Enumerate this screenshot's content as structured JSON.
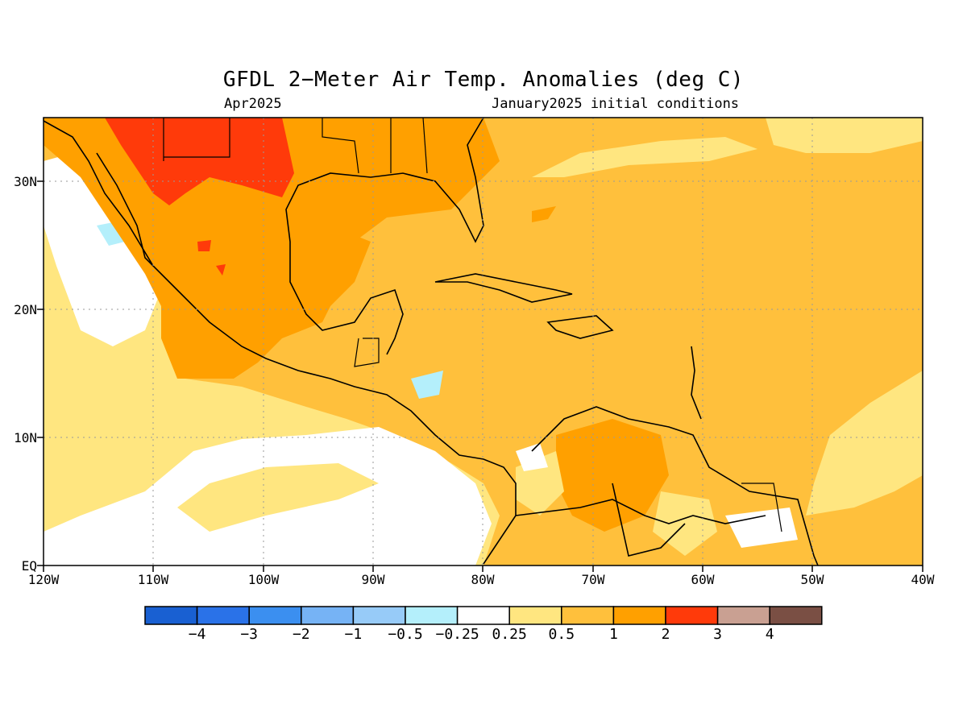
{
  "title": "GFDL 2−Meter Air Temp. Anomalies (deg C)",
  "subtitle_left": "Apr2025",
  "subtitle_right": "January2025 initial conditions",
  "map": {
    "lat_labels": [
      "30N",
      "20N",
      "10N",
      "EQ"
    ],
    "lon_labels": [
      "120W",
      "110W",
      "100W",
      "90W",
      "80W",
      "70W",
      "60W",
      "50W",
      "40W"
    ],
    "lon_range": [
      -120,
      -40
    ],
    "lat_range": [
      0,
      35
    ]
  },
  "colorbar": {
    "colors": [
      "#1960d2",
      "#2a72e8",
      "#3b8ff0",
      "#76b3f5",
      "#97cbf8",
      "#b4effb",
      "#ffffff",
      "#ffe680",
      "#ffc03c",
      "#ffa000",
      "#ff3a0a",
      "#c9a092",
      "#7a4f44"
    ],
    "labels": [
      "−4",
      "−3",
      "−2",
      "−1",
      "−0.5",
      "−0.25",
      "0.25",
      "0.5",
      "1",
      "2",
      "3",
      "4"
    ]
  }
}
